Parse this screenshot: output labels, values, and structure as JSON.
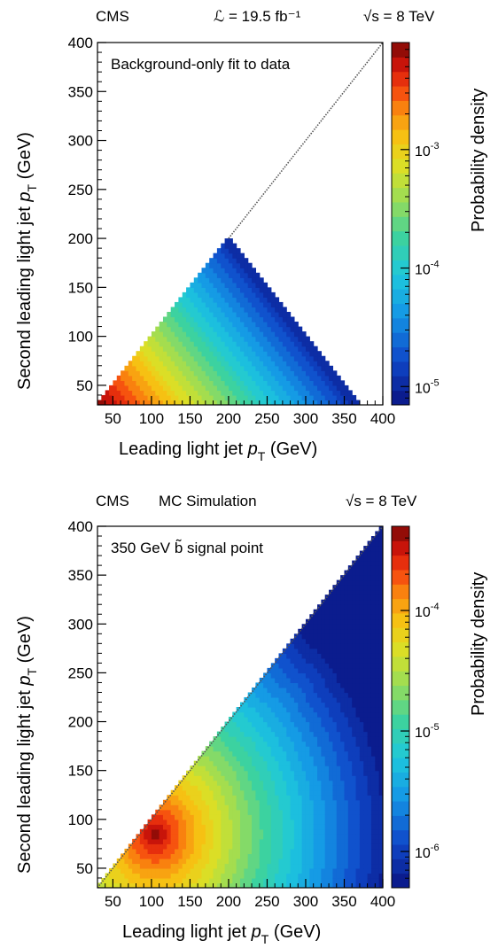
{
  "chart_data": [
    {
      "type": "heatmap",
      "header_left": "CMS",
      "header_lumi": "ℒ = 19.5 fb⁻¹",
      "header_energy": "√s = 8 TeV",
      "annotation": "Background-only fit to data",
      "xlabel": "Leading light jet p_T (GeV)",
      "ylabel": "Second leading light jet p_T (GeV)",
      "zlabel": "Probability density",
      "xlim": [
        30,
        400
      ],
      "ylim": [
        30,
        400
      ],
      "xticks": [
        50,
        100,
        150,
        200,
        250,
        300,
        350,
        400
      ],
      "yticks": [
        50,
        100,
        150,
        200,
        250,
        300,
        350,
        400
      ],
      "zscale": "log",
      "zlim": [
        7e-06,
        0.008
      ],
      "zticks": [
        {
          "value": 1e-05,
          "label": "10^-5"
        },
        {
          "value": 0.0001,
          "label": "10^-4"
        },
        {
          "value": 0.001,
          "label": "10^-3"
        }
      ],
      "color_levels": 25,
      "support": "filled region: y <= x (diagonal) and x + y <= 400",
      "density_model": {
        "form": "exponential falloff in x + y",
        "value_at_x_plus_y_60": 0.008,
        "value_at_x_plus_y_400": 1e-05
      }
    },
    {
      "type": "heatmap",
      "header_left": "CMS",
      "header_mid": "MC Simulation",
      "header_energy": "√s = 8 TeV",
      "annotation": "350 GeV b̃ signal point",
      "xlabel": "Leading light jet p_T (GeV)",
      "ylabel": "Second leading light jet p_T (GeV)",
      "zlabel": "Probability density",
      "xlim": [
        30,
        400
      ],
      "ylim": [
        30,
        400
      ],
      "xticks": [
        50,
        100,
        150,
        200,
        250,
        300,
        350,
        400
      ],
      "yticks": [
        50,
        100,
        150,
        200,
        250,
        300,
        350,
        400
      ],
      "zscale": "log",
      "zlim": [
        5e-07,
        0.0005
      ],
      "zticks": [
        {
          "value": 1e-06,
          "label": "10^-6"
        },
        {
          "value": 1e-05,
          "label": "10^-5"
        },
        {
          "value": 0.0001,
          "label": "10^-4"
        }
      ],
      "color_levels": 25,
      "support": "filled region: y <= x (diagonal)",
      "density_model": {
        "form": "peaked, falling with distance from peak",
        "peak": [
          105,
          85
        ],
        "value_at_peak": 0.0005,
        "value_at_x_400_y_30": 6e-07
      }
    }
  ]
}
